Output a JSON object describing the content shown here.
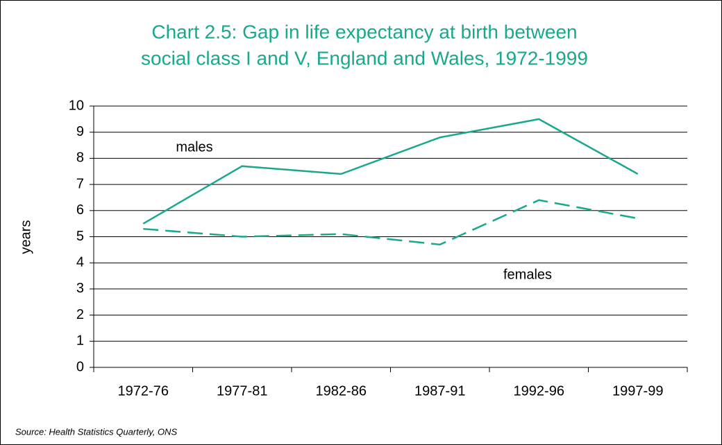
{
  "chart_data": {
    "type": "line",
    "title": [
      "Chart 2.5: Gap in life expectancy at birth between",
      "social class I and V, England and Wales, 1972-1999"
    ],
    "y_label": "years",
    "source": "Source: Health Statistics Quarterly, ONS",
    "categories": [
      "1972-76",
      "1977-81",
      "1982-86",
      "1987-91",
      "1992-96",
      "1997-99"
    ],
    "series": [
      {
        "name": "males",
        "color": "#19a88b",
        "dash": false,
        "values": [
          5.5,
          7.7,
          7.4,
          8.8,
          9.5,
          7.4
        ]
      },
      {
        "name": "females",
        "color": "#19a88b",
        "dash": true,
        "values": [
          5.3,
          5.0,
          5.1,
          4.7,
          6.4,
          5.7
        ]
      }
    ],
    "ylim": [
      0,
      10
    ],
    "yticks": [
      0,
      1,
      2,
      3,
      4,
      5,
      6,
      7,
      8,
      9,
      10
    ],
    "grid": true
  }
}
